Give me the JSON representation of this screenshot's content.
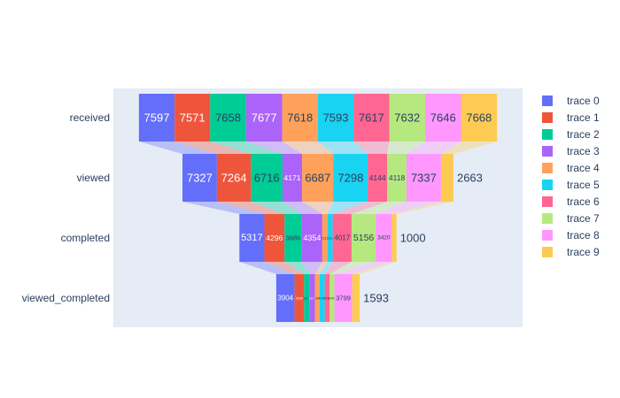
{
  "chart_data": {
    "type": "funnel",
    "stages": [
      "received",
      "viewed",
      "completed",
      "viewed_completed"
    ],
    "series": [
      {
        "name": "trace 0",
        "color": "#636efa",
        "values": [
          7597,
          7327,
          5317,
          3904
        ]
      },
      {
        "name": "trace 1",
        "color": "#ef553b",
        "values": [
          7571,
          7264,
          4296,
          2030
        ]
      },
      {
        "name": "trace 2",
        "color": "#00cc96",
        "values": [
          7658,
          6716,
          3686,
          1200
        ]
      },
      {
        "name": "trace 3",
        "color": "#ab63fa",
        "values": [
          7677,
          4171,
          4354,
          1100
        ]
      },
      {
        "name": "trace 4",
        "color": "#ffa15a",
        "values": [
          7618,
          6687,
          1111,
          1000
        ]
      },
      {
        "name": "trace 5",
        "color": "#19d3f3",
        "values": [
          7593,
          7298,
          1111,
          1100
        ]
      },
      {
        "name": "trace 6",
        "color": "#ff6692",
        "values": [
          7617,
          4144,
          4017,
          1050
        ]
      },
      {
        "name": "trace 7",
        "color": "#b6e880",
        "values": [
          7632,
          4118,
          5156,
          1000
        ]
      },
      {
        "name": "trace 8",
        "color": "#ff97ff",
        "values": [
          7646,
          7337,
          3420,
          3799
        ]
      },
      {
        "name": "trace 9",
        "color": "#fecb52",
        "values": [
          7668,
          2663,
          1000,
          1593
        ]
      }
    ],
    "legend_position": "right",
    "grid": true
  }
}
